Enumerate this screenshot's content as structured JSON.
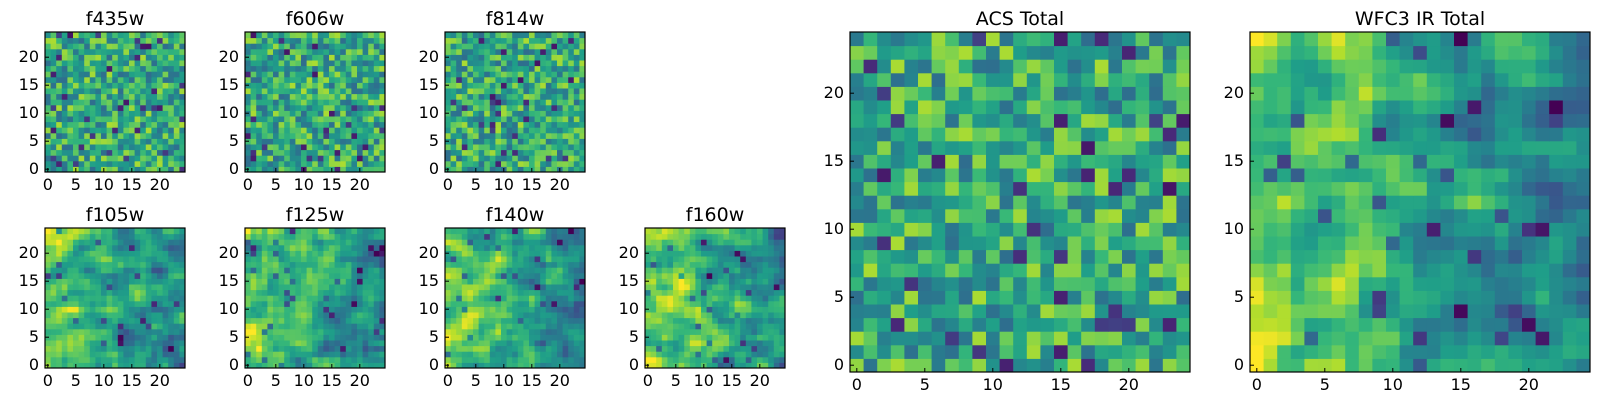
{
  "chart_data": [
    {
      "type": "heatmap",
      "title": "f435w",
      "colormap": "viridis",
      "grid_size": 25,
      "xlim": [
        0,
        24
      ],
      "ylim": [
        0,
        24
      ],
      "xticks": [
        "0",
        "5",
        "10",
        "15",
        "20"
      ],
      "yticks": [
        "0",
        "5",
        "10",
        "15",
        "20"
      ],
      "pattern": "noise"
    },
    {
      "type": "heatmap",
      "title": "f606w",
      "colormap": "viridis",
      "grid_size": 25,
      "xlim": [
        0,
        24
      ],
      "ylim": [
        0,
        24
      ],
      "xticks": [
        "0",
        "5",
        "10",
        "15",
        "20"
      ],
      "yticks": [
        "0",
        "5",
        "10",
        "15",
        "20"
      ],
      "pattern": "noise"
    },
    {
      "type": "heatmap",
      "title": "f814w",
      "colormap": "viridis",
      "grid_size": 25,
      "xlim": [
        0,
        24
      ],
      "ylim": [
        0,
        24
      ],
      "xticks": [
        "0",
        "5",
        "10",
        "15",
        "20"
      ],
      "yticks": [
        "0",
        "5",
        "10",
        "15",
        "20"
      ],
      "pattern": "noise"
    },
    {
      "type": "heatmap",
      "title": "f105w",
      "colormap": "viridis",
      "grid_size": 25,
      "xlim": [
        0,
        24
      ],
      "ylim": [
        0,
        24
      ],
      "xticks": [
        "0",
        "5",
        "10",
        "15",
        "20"
      ],
      "yticks": [
        "0",
        "5",
        "10",
        "15",
        "20"
      ],
      "pattern": "bright-left"
    },
    {
      "type": "heatmap",
      "title": "f125w",
      "colormap": "viridis",
      "grid_size": 25,
      "xlim": [
        0,
        24
      ],
      "ylim": [
        0,
        24
      ],
      "xticks": [
        "0",
        "5",
        "10",
        "15",
        "20"
      ],
      "yticks": [
        "0",
        "5",
        "10",
        "15",
        "20"
      ],
      "pattern": "bright-left"
    },
    {
      "type": "heatmap",
      "title": "f140w",
      "colormap": "viridis",
      "grid_size": 25,
      "xlim": [
        0,
        24
      ],
      "ylim": [
        0,
        24
      ],
      "xticks": [
        "0",
        "5",
        "10",
        "15",
        "20"
      ],
      "yticks": [
        "0",
        "5",
        "10",
        "15",
        "20"
      ],
      "pattern": "bright-left"
    },
    {
      "type": "heatmap",
      "title": "f160w",
      "colormap": "viridis",
      "grid_size": 25,
      "xlim": [
        0,
        24
      ],
      "ylim": [
        0,
        24
      ],
      "xticks": [
        "0",
        "5",
        "10",
        "15",
        "20"
      ],
      "yticks": [
        "0",
        "5",
        "10",
        "15",
        "20"
      ],
      "pattern": "bright-left"
    },
    {
      "type": "heatmap",
      "title": "ACS Total",
      "colormap": "viridis",
      "grid_size": 25,
      "xlim": [
        0,
        24
      ],
      "ylim": [
        0,
        24
      ],
      "xticks": [
        "0",
        "5",
        "10",
        "15",
        "20"
      ],
      "yticks": [
        "0",
        "5",
        "10",
        "15",
        "20"
      ],
      "pattern": "noise"
    },
    {
      "type": "heatmap",
      "title": "WFC3 IR Total",
      "colormap": "viridis",
      "grid_size": 25,
      "xlim": [
        0,
        24
      ],
      "ylim": [
        0,
        24
      ],
      "xticks": [
        "0",
        "5",
        "10",
        "15",
        "20"
      ],
      "yticks": [
        "0",
        "5",
        "10",
        "15",
        "20"
      ],
      "pattern": "bright-left"
    }
  ]
}
